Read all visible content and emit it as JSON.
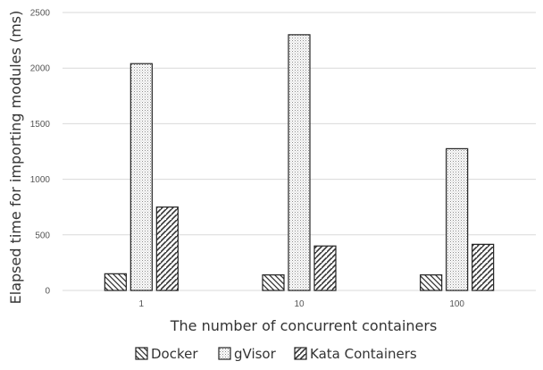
{
  "chart_data": {
    "type": "bar",
    "categories": [
      "1",
      "10",
      "100"
    ],
    "series": [
      {
        "name": "Docker",
        "values": [
          150,
          140,
          140
        ],
        "pattern": "hatch-back"
      },
      {
        "name": "gVisor",
        "values": [
          2040,
          2300,
          1275
        ],
        "pattern": "dots"
      },
      {
        "name": "Kata Containers",
        "values": [
          750,
          400,
          415
        ],
        "pattern": "hatch-forward"
      }
    ],
    "title": "",
    "xlabel": "The number of concurrent containers",
    "ylabel": "Elapsed time for importing modules (ms)",
    "ylim": [
      0,
      2500
    ],
    "yticks": [
      "0",
      "500",
      "1000",
      "1500",
      "2000",
      "2500"
    ],
    "grid": true,
    "legend_position": "bottom"
  }
}
